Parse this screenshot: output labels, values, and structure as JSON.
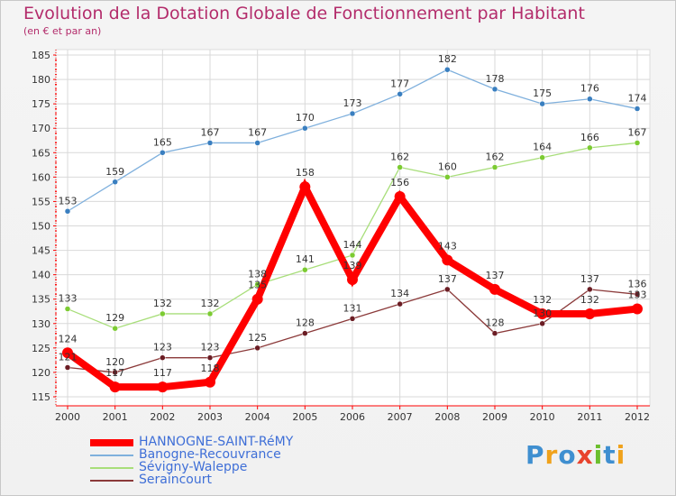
{
  "header": {
    "title": "Evolution de la Dotation Globale de Fonctionnement par Habitant",
    "subtitle": "(en € et par an)"
  },
  "logo": {
    "text": "Proxiti",
    "letters": [
      "P",
      "r",
      "o",
      "x",
      "i",
      "t",
      "i"
    ]
  },
  "colors": {
    "title": "#b32c6b",
    "axis": "#ff0000",
    "grid": "#d9d9d9",
    "tick_label": "#333333",
    "data_label": "#333333",
    "legend_text": "#3f6fd7"
  },
  "chart_data": {
    "type": "line",
    "title": "Evolution de la Dotation Globale de Fonctionnement par Habitant",
    "subtitle": "(en € et par an)",
    "xlabel": "",
    "ylabel": "",
    "x": [
      2000,
      2001,
      2002,
      2003,
      2004,
      2005,
      2006,
      2007,
      2008,
      2009,
      2010,
      2011,
      2012
    ],
    "ylim": [
      115,
      185
    ],
    "yticks": [
      115,
      120,
      125,
      130,
      135,
      140,
      145,
      150,
      155,
      160,
      165,
      170,
      175,
      180,
      185
    ],
    "grid": true,
    "legend_position": "bottom-left",
    "series": [
      {
        "name": "HANNOGNE-SAINT-RéMY",
        "color": "#ff0000",
        "marker_color": "#ff0000",
        "values": [
          124,
          117,
          117,
          118,
          135,
          158,
          139,
          156,
          143,
          137,
          132,
          132,
          133
        ],
        "thick": true
      },
      {
        "name": "Banogne-Recouvrance",
        "color": "#7fb0dd",
        "marker_color": "#3a7fc0",
        "values": [
          153,
          159,
          165,
          167,
          167,
          170,
          173,
          177,
          182,
          178,
          175,
          176,
          174
        ],
        "thick": false
      },
      {
        "name": "Sévigny-Waleppe",
        "color": "#a8de7a",
        "marker_color": "#7ccb32",
        "values": [
          133,
          129,
          132,
          132,
          138,
          141,
          144,
          162,
          160,
          162,
          164,
          166,
          167
        ],
        "thick": false
      },
      {
        "name": "Seraincourt",
        "color": "#8b3a3a",
        "marker_color": "#6b1d24",
        "values": [
          121,
          120,
          123,
          123,
          125,
          128,
          131,
          134,
          137,
          128,
          130,
          137,
          136
        ],
        "thick": false
      }
    ]
  }
}
